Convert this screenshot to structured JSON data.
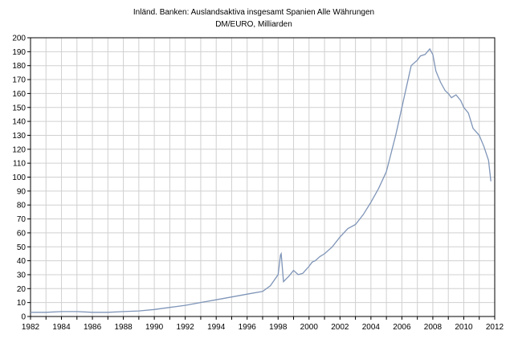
{
  "chart_data": {
    "type": "line",
    "title": "Inländ. Banken: Auslandsaktiva insgesamt Spanien Alle Währungen",
    "subtitle": "DM/EURO, Milliarden",
    "xlabel": "",
    "ylabel": "",
    "xlim": [
      1982,
      2012
    ],
    "ylim": [
      0,
      200
    ],
    "grid": true,
    "x_ticks": [
      "1982",
      "1984",
      "1986",
      "1988",
      "1990",
      "1992",
      "1994",
      "1996",
      "1998",
      "2000",
      "2002",
      "2004",
      "2006",
      "2008",
      "2010",
      "2012"
    ],
    "y_ticks": [
      "0",
      "10",
      "20",
      "30",
      "40",
      "50",
      "60",
      "70",
      "80",
      "90",
      "100",
      "110",
      "120",
      "130",
      "140",
      "150",
      "160",
      "170",
      "180",
      "190",
      "200"
    ],
    "line_color": "#7f95b8",
    "series": [
      {
        "x": [
          1982.0,
          1983.0,
          1984.0,
          1985.0,
          1986.0,
          1987.0,
          1988.0,
          1989.0,
          1990.0,
          1991.0,
          1992.0,
          1993.0,
          1994.0,
          1995.0,
          1996.0,
          1997.0,
          1997.5,
          1998.0,
          1998.15,
          1998.2,
          1998.35,
          1998.7,
          1999.0,
          1999.3,
          1999.6,
          2000.0,
          2000.2,
          2000.4,
          2000.7,
          2001.0,
          2001.5,
          2002.0,
          2002.5,
          2003.0,
          2003.5,
          2004.0,
          2004.5,
          2005.0,
          2005.3,
          2005.6,
          2006.0,
          2006.3,
          2006.6,
          2007.0,
          2007.2,
          2007.5,
          2007.8,
          2008.0,
          2008.2,
          2008.5,
          2008.8,
          2009.0,
          2009.2,
          2009.5,
          2009.8,
          2010.0,
          2010.3,
          2010.6,
          2011.0,
          2011.3,
          2011.6,
          2011.75
        ],
        "values": [
          3,
          3,
          3.5,
          3.5,
          3,
          3,
          3.5,
          4,
          5,
          6.5,
          8,
          10,
          12,
          14,
          16,
          18,
          22,
          30,
          44,
          45,
          25,
          29,
          33,
          30,
          31,
          36,
          39,
          40,
          43,
          45,
          50,
          57,
          63,
          66,
          73,
          82,
          92,
          104,
          117,
          130,
          150,
          165,
          180,
          184,
          187,
          188,
          192,
          188,
          176,
          168,
          162,
          160,
          157,
          159,
          155,
          150,
          146,
          135,
          130,
          122,
          112,
          97
        ]
      }
    ]
  }
}
